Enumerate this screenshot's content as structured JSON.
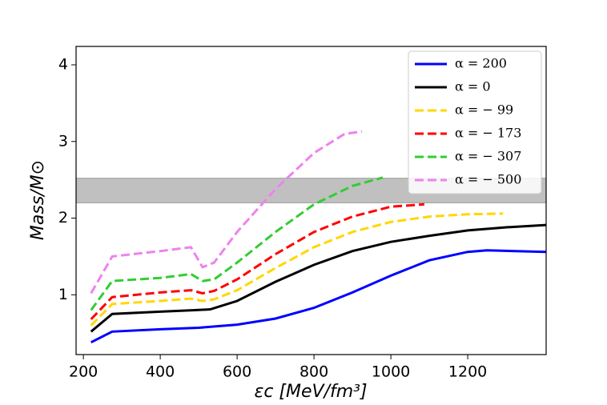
{
  "chart_data": {
    "type": "line",
    "x_label": "εc [MeV/fm³]",
    "y_label": "Mass/M⊙",
    "xlim": [
      181,
      1404
    ],
    "ylim": [
      0.22,
      4.24
    ],
    "xticks": [
      200,
      400,
      600,
      800,
      1000,
      1200
    ],
    "yticks": [
      1,
      2,
      3,
      4
    ],
    "shaded_band": [
      2.2,
      2.52
    ],
    "shaded_band_color": "#c0c0c0",
    "legend": "upper right",
    "series": [
      {
        "name": "α = 200",
        "color": "#0000ff",
        "dash": false,
        "x": [
          220,
          275,
          400,
          500,
          600,
          700,
          800,
          900,
          1000,
          1100,
          1200,
          1250,
          1404
        ],
        "values": [
          0.38,
          0.52,
          0.55,
          0.57,
          0.61,
          0.69,
          0.83,
          1.03,
          1.25,
          1.45,
          1.56,
          1.58,
          1.56
        ]
      },
      {
        "name": "α = 0",
        "color": "#000000",
        "dash": false,
        "x": [
          220,
          275,
          400,
          490,
          530,
          600,
          700,
          800,
          900,
          1000,
          1100,
          1200,
          1300,
          1404
        ],
        "values": [
          0.52,
          0.75,
          0.78,
          0.8,
          0.81,
          0.92,
          1.17,
          1.39,
          1.57,
          1.69,
          1.77,
          1.84,
          1.88,
          1.91
        ]
      },
      {
        "name": "α = − 99",
        "color": "#ffd700",
        "dash": true,
        "x": [
          220,
          275,
          400,
          480,
          510,
          540,
          600,
          700,
          800,
          900,
          1000,
          1100,
          1200,
          1292
        ],
        "values": [
          0.6,
          0.88,
          0.92,
          0.95,
          0.92,
          0.94,
          1.06,
          1.35,
          1.62,
          1.82,
          1.95,
          2.02,
          2.05,
          2.06
        ]
      },
      {
        "name": "α = − 173",
        "color": "#ff0000",
        "dash": true,
        "x": [
          220,
          275,
          400,
          480,
          510,
          540,
          600,
          700,
          800,
          900,
          1000,
          1087
        ],
        "values": [
          0.68,
          0.97,
          1.03,
          1.06,
          1.02,
          1.05,
          1.2,
          1.53,
          1.82,
          2.02,
          2.15,
          2.18
        ]
      },
      {
        "name": "α = − 307",
        "color": "#32cd32",
        "dash": true,
        "x": [
          220,
          275,
          400,
          480,
          510,
          540,
          600,
          700,
          800,
          900,
          979
        ],
        "values": [
          0.8,
          1.18,
          1.22,
          1.27,
          1.18,
          1.2,
          1.42,
          1.82,
          2.18,
          2.42,
          2.53
        ]
      },
      {
        "name": "α = − 500",
        "color": "#ee82ee",
        "dash": true,
        "x": [
          220,
          275,
          400,
          480,
          510,
          540,
          600,
          700,
          800,
          880,
          925
        ],
        "values": [
          1.02,
          1.5,
          1.57,
          1.62,
          1.36,
          1.42,
          1.82,
          2.38,
          2.85,
          3.1,
          3.13
        ]
      }
    ]
  }
}
